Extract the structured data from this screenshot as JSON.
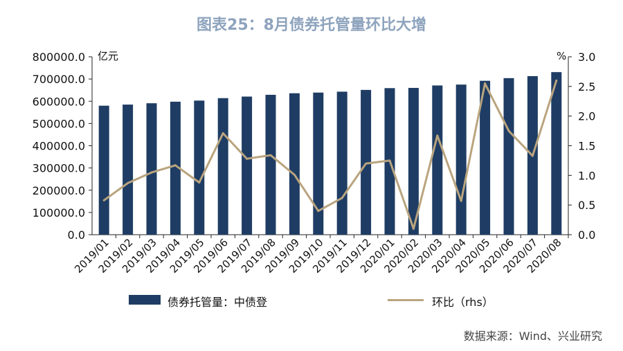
{
  "title": "图表25：8月债券托管量环比大增",
  "source": "数据来源：Wind、兴业研究",
  "colors": {
    "bar": "#1f3d64",
    "line": "#b9a47e",
    "title": "#8ea3bd"
  },
  "chart_data": {
    "type": "bar",
    "categories": [
      "2019/01",
      "2019/02",
      "2019/03",
      "2019/04",
      "2019/05",
      "2019/06",
      "2019/07",
      "2019/08",
      "2019/09",
      "2019/10",
      "2019/11",
      "2019/12",
      "2020/01",
      "2020/02",
      "2020/03",
      "2020/04",
      "2020/05",
      "2020/06",
      "2020/07",
      "2020/08"
    ],
    "series": [
      {
        "name": "债券托管量：中债登",
        "type": "bar",
        "axis": "left",
        "values": [
          580000,
          585000,
          591000,
          598000,
          603000,
          614000,
          621000,
          629000,
          636000,
          639000,
          643000,
          651000,
          659000,
          660000,
          671000,
          675000,
          692000,
          704000,
          713000,
          731000
        ]
      },
      {
        "name": "环比（rhs）",
        "type": "line",
        "axis": "right",
        "values": [
          0.58,
          0.87,
          1.05,
          1.17,
          0.88,
          1.71,
          1.28,
          1.34,
          1.01,
          0.4,
          0.62,
          1.2,
          1.25,
          0.1,
          1.67,
          0.57,
          2.55,
          1.75,
          1.33,
          2.6
        ]
      }
    ],
    "ylabel_left": "亿元",
    "ylabel_right": "%",
    "ylim_left": [
      0,
      800000
    ],
    "yticks_left": [
      "0.0",
      "100000.0",
      "200000.0",
      "300000.0",
      "400000.0",
      "500000.0",
      "600000.0",
      "700000.0",
      "800000.0"
    ],
    "ylim_right": [
      0,
      3.0
    ],
    "yticks_right": [
      "0.0",
      "0.5",
      "1.0",
      "1.5",
      "2.0",
      "2.5",
      "3.0"
    ],
    "grid": false,
    "legend": "bottom"
  }
}
